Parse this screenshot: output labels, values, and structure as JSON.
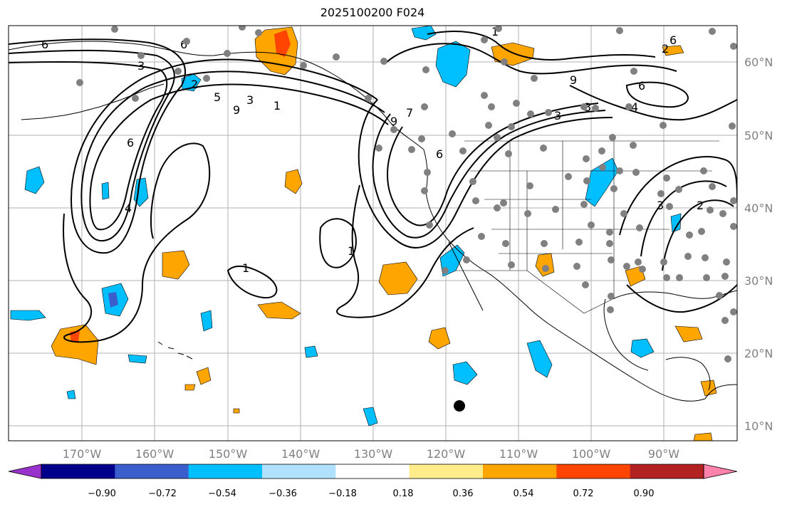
{
  "title": "2025100200 F024",
  "map": {
    "projection": "plate-carree",
    "lon_range": [
      -180,
      -79
    ],
    "lat_range": [
      8,
      65
    ],
    "gridlines": true,
    "lon_ticks": [
      "170°W",
      "160°W",
      "150°W",
      "140°W",
      "130°W",
      "120°W",
      "110°W",
      "100°W",
      "90°W"
    ],
    "lat_ticks": [
      "10°N",
      "20°N",
      "30°N",
      "40°N",
      "50°N",
      "60°N"
    ],
    "contour_color": "#000000",
    "contour_labels": [
      "6",
      "6",
      "3",
      "2",
      "5",
      "3",
      "1",
      "6",
      "9",
      "4",
      "1",
      "1",
      "1",
      "7",
      "9",
      "6",
      "3",
      "9",
      "6",
      "3",
      "2",
      "6",
      "4",
      "3",
      "2"
    ],
    "marker_color": "#808080",
    "highlight_marker_color": "#000000"
  },
  "colorbar": {
    "colors": [
      "#9932cc",
      "#00008b",
      "#3a5fcd",
      "#00bfff",
      "#b0e2ff",
      "#ffffff",
      "#ffec8b",
      "#ffa500",
      "#ff4500",
      "#b22222",
      "#ff82ab"
    ],
    "tick_labels": [
      "−0.90",
      "−0.72",
      "−0.54",
      "−0.36",
      "−0.18",
      "0.18",
      "0.36",
      "0.54",
      "0.72",
      "0.90"
    ],
    "extend": "both"
  }
}
